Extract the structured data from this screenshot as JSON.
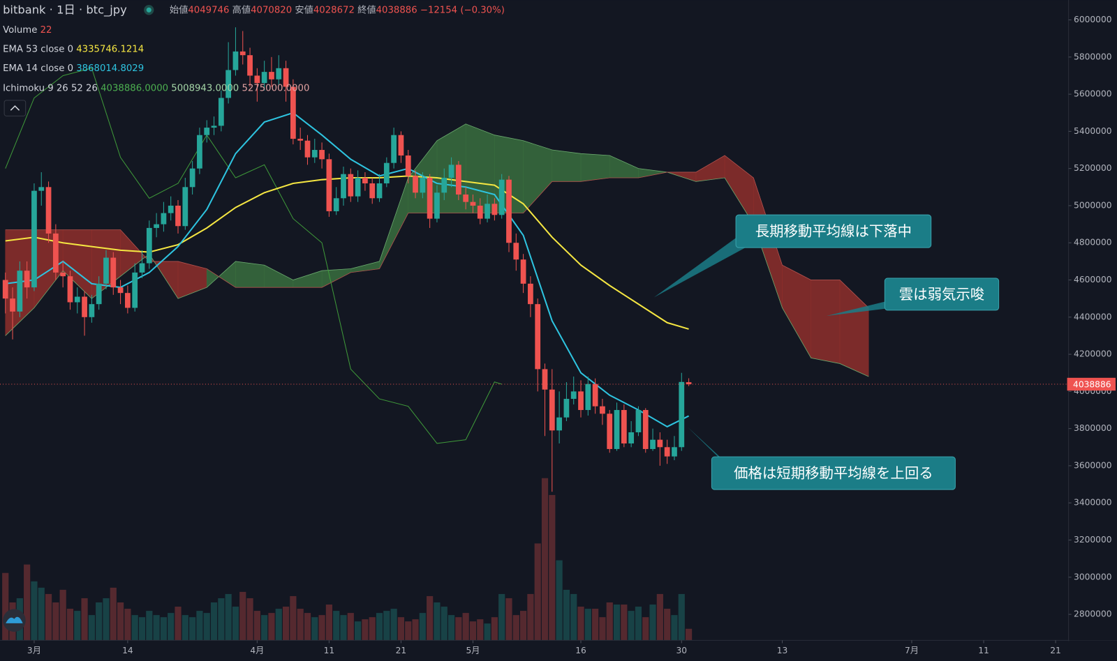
{
  "chart_data": {
    "type": "candlestick",
    "header": {
      "symbol": "bitbank",
      "interval": "1日",
      "pair": "btc_jpy",
      "open_label": "始値",
      "high_label": "高値",
      "low_label": "安値",
      "close_label": "終値",
      "change": "−12154",
      "change_pct": "(−0.30%)"
    },
    "up_color": "#26a69a",
    "down_color": "#ef5350",
    "x": [
      -4,
      -3,
      -2,
      -1,
      0,
      1,
      2,
      3,
      4,
      5,
      6,
      7,
      8,
      9,
      10,
      11,
      12,
      13,
      14,
      15,
      16,
      17,
      18,
      19,
      20,
      21,
      22,
      23,
      24,
      25,
      26,
      27,
      28,
      29,
      30,
      31,
      32,
      33,
      34,
      35,
      36,
      37,
      38,
      39,
      40,
      41,
      42,
      43,
      44,
      45,
      46,
      47,
      48,
      49,
      50,
      51,
      52,
      53,
      54,
      55,
      56,
      57,
      58,
      59,
      60,
      61,
      62,
      63,
      64,
      65,
      66,
      67,
      68,
      69,
      70,
      71,
      72,
      73,
      74,
      75,
      76,
      77,
      78,
      79,
      80,
      81,
      82,
      83,
      84,
      85,
      86,
      87,
      88,
      89,
      90,
      91
    ],
    "open": [
      4600000,
      4500000,
      4430000,
      4650000,
      4560000,
      5080000,
      5100000,
      4850000,
      4640000,
      4620000,
      4480000,
      4510000,
      4400000,
      4470000,
      4580000,
      4720000,
      4560000,
      4530000,
      4450000,
      4640000,
      4690000,
      4880000,
      4900000,
      4960000,
      5000000,
      4890000,
      5100000,
      5200000,
      5380000,
      5420000,
      5430000,
      5580000,
      5730000,
      5830000,
      5810000,
      5700000,
      5660000,
      5720000,
      5680000,
      5740000,
      5640000,
      5360000,
      5350000,
      5260000,
      5300000,
      5250000,
      4970000,
      5040000,
      5170000,
      5050000,
      5150000,
      5120000,
      5040000,
      5120000,
      5230000,
      5380000,
      5270000,
      5160000,
      5070000,
      5150000,
      4930000,
      5070000,
      5150000,
      5220000,
      5060000,
      5020000,
      5000000,
      4930000,
      5010000,
      4950000,
      5140000,
      4800000,
      4710000,
      4580000,
      4470000,
      4120000,
      4010000,
      3790000,
      3860000,
      3960000,
      4000000,
      3900000,
      4040000,
      3920000,
      3880000,
      3690000,
      3900000,
      3720000,
      3780000,
      3900000,
      3690000,
      3740000,
      3700000,
      3650000,
      3700000,
      4049746
    ],
    "high": [
      4640000,
      4560000,
      4700000,
      4700000,
      5120000,
      5180000,
      5130000,
      4900000,
      4700000,
      4650000,
      4560000,
      4540000,
      4520000,
      4620000,
      4760000,
      4750000,
      4600000,
      4570000,
      4690000,
      4760000,
      4920000,
      4960000,
      5020000,
      5050000,
      5030000,
      5150000,
      5240000,
      5420000,
      5460000,
      5480000,
      5620000,
      5880000,
      5960000,
      5940000,
      5850000,
      5740000,
      5780000,
      5800000,
      5810000,
      5780000,
      5680000,
      5420000,
      5380000,
      5360000,
      5340000,
      5280000,
      5100000,
      5210000,
      5200000,
      5190000,
      5180000,
      5150000,
      5170000,
      5260000,
      5420000,
      5400000,
      5300000,
      5190000,
      5180000,
      5170000,
      5110000,
      5200000,
      5260000,
      5240000,
      5100000,
      5060000,
      5040000,
      5060000,
      5040000,
      5170000,
      5160000,
      4850000,
      4740000,
      4620000,
      4500000,
      4150000,
      4120000,
      4000000,
      4050000,
      4080000,
      4060000,
      4080000,
      4070000,
      3960000,
      3900000,
      3940000,
      3930000,
      3840000,
      3920000,
      3910000,
      3800000,
      3780000,
      3740000,
      3760000,
      4100000,
      4070820
    ],
    "low": [
      4420000,
      4280000,
      4400000,
      4500000,
      4540000,
      5000000,
      4800000,
      4600000,
      4560000,
      4440000,
      4420000,
      4300000,
      4370000,
      4440000,
      4550000,
      4520000,
      4470000,
      4420000,
      4430000,
      4610000,
      4660000,
      4830000,
      4860000,
      4920000,
      4850000,
      4870000,
      5060000,
      5170000,
      5340000,
      5380000,
      5400000,
      5550000,
      5700000,
      5760000,
      5640000,
      5560000,
      5620000,
      5640000,
      5650000,
      5560000,
      5330000,
      5300000,
      5220000,
      5230000,
      5200000,
      4940000,
      4950000,
      5000000,
      5020000,
      5020000,
      5080000,
      5010000,
      5020000,
      5100000,
      5200000,
      5230000,
      5120000,
      5040000,
      5040000,
      4880000,
      4910000,
      5030000,
      5100000,
      5030000,
      4980000,
      4960000,
      4900000,
      4910000,
      4920000,
      4930000,
      4750000,
      4650000,
      4530000,
      4400000,
      4000000,
      3760000,
      3460000,
      3720000,
      3840000,
      3930000,
      3860000,
      3870000,
      3880000,
      3820000,
      3670000,
      3680000,
      3700000,
      3700000,
      3760000,
      3670000,
      3680000,
      3600000,
      3610000,
      3630000,
      3680000,
      4028672
    ],
    "close": [
      4500000,
      4430000,
      4650000,
      4560000,
      5080000,
      5100000,
      4850000,
      4640000,
      4620000,
      4480000,
      4510000,
      4400000,
      4470000,
      4580000,
      4720000,
      4560000,
      4530000,
      4450000,
      4640000,
      4690000,
      4880000,
      4900000,
      4960000,
      5000000,
      4890000,
      5100000,
      5200000,
      5380000,
      5420000,
      5430000,
      5580000,
      5730000,
      5830000,
      5810000,
      5700000,
      5660000,
      5720000,
      5680000,
      5740000,
      5640000,
      5360000,
      5350000,
      5260000,
      5300000,
      5250000,
      4970000,
      5040000,
      5170000,
      5050000,
      5150000,
      5120000,
      5040000,
      5120000,
      5230000,
      5380000,
      5270000,
      5160000,
      5070000,
      5150000,
      4930000,
      5070000,
      5150000,
      5220000,
      5060000,
      5020000,
      5000000,
      4930000,
      5010000,
      4950000,
      5140000,
      4800000,
      4710000,
      4580000,
      4470000,
      4120000,
      4010000,
      3790000,
      3860000,
      3960000,
      4000000,
      3900000,
      4040000,
      3920000,
      3880000,
      3690000,
      3900000,
      3720000,
      3780000,
      3900000,
      3690000,
      3740000,
      3700000,
      3650000,
      3700000,
      4051040,
      4038886
    ],
    "volume": {
      "name": "Volume",
      "values": [
        128,
        72,
        80,
        144,
        112,
        100,
        88,
        72,
        96,
        60,
        56,
        80,
        48,
        72,
        80,
        100,
        72,
        60,
        48,
        44,
        56,
        48,
        44,
        52,
        64,
        48,
        44,
        56,
        52,
        72,
        80,
        88,
        64,
        92,
        80,
        56,
        48,
        52,
        60,
        64,
        84,
        60,
        52,
        44,
        48,
        68,
        56,
        48,
        52,
        36,
        40,
        44,
        52,
        56,
        60,
        44,
        36,
        40,
        52,
        84,
        72,
        64,
        48,
        44,
        52,
        36,
        40,
        32,
        44,
        88,
        80,
        48,
        56,
        88,
        184,
        308,
        276,
        152,
        96,
        88,
        64,
        60,
        60,
        44,
        72,
        68,
        68,
        56,
        64,
        44,
        68,
        88,
        60,
        48,
        88,
        22
      ]
    },
    "series": [
      {
        "name": "EMA 53 close 0",
        "color": "#f5e642",
        "last_label": "4335746.1214",
        "x": [
          -4,
          0,
          4,
          8,
          12,
          16,
          20,
          24,
          28,
          32,
          36,
          40,
          44,
          48,
          52,
          56,
          60,
          64,
          68,
          72,
          76,
          80,
          84,
          88,
          91
        ],
        "values": [
          4810000,
          4830000,
          4800000,
          4780000,
          4760000,
          4750000,
          4790000,
          4880000,
          4990000,
          5070000,
          5120000,
          5140000,
          5150000,
          5150000,
          5160000,
          5150000,
          5130000,
          5110000,
          5010000,
          4830000,
          4680000,
          4570000,
          4470000,
          4370000,
          4335746.1214
        ]
      },
      {
        "name": "EMA 14 close 0",
        "color": "#2ec4e0",
        "last_label": "3868014.8029",
        "x": [
          -4,
          0,
          4,
          8,
          12,
          16,
          20,
          24,
          28,
          32,
          36,
          40,
          44,
          48,
          52,
          56,
          60,
          64,
          68,
          72,
          76,
          80,
          84,
          88,
          91
        ],
        "values": [
          4580000,
          4600000,
          4700000,
          4580000,
          4560000,
          4640000,
          4780000,
          4980000,
          5280000,
          5450000,
          5500000,
          5380000,
          5250000,
          5160000,
          5200000,
          5120000,
          5100000,
          5060000,
          4840000,
          4380000,
          4100000,
          3980000,
          3900000,
          3810000,
          3868014.8029
        ]
      }
    ],
    "ichimoku": {
      "name": "Ichimoku 9 26 52 26",
      "labels": [
        "4038886.0000",
        "5008943.0000",
        "5275000.0000"
      ],
      "lagging": {
        "color": "#3f9a3a",
        "x": [
          -4,
          0,
          4,
          8,
          12,
          16,
          20,
          24,
          28,
          32,
          36,
          40,
          44,
          48,
          52,
          56,
          60,
          64,
          65
        ],
        "values": [
          5200000,
          5580000,
          5700000,
          5740000,
          5260000,
          5040000,
          5120000,
          5380000,
          5150000,
          5220000,
          4930000,
          4800000,
          4120000,
          3960000,
          3920000,
          3720000,
          3740000,
          4051040,
          4038886
        ]
      },
      "cloud_x": [
        -4,
        0,
        4,
        8,
        12,
        16,
        20,
        24,
        28,
        32,
        36,
        40,
        44,
        48,
        52,
        56,
        60,
        64,
        68,
        72,
        76,
        80,
        84,
        88,
        92,
        96,
        100,
        104,
        108,
        112,
        116
      ],
      "span_a": [
        4300000,
        4450000,
        4650000,
        4500000,
        4620000,
        4740000,
        4500000,
        4560000,
        4700000,
        4680000,
        4600000,
        4650000,
        4660000,
        4700000,
        5150000,
        5350000,
        5440000,
        5380000,
        5350000,
        5300000,
        5280000,
        5270000,
        5200000,
        5180000,
        5130000,
        5150000,
        4900000,
        4450000,
        4180000,
        4150000,
        4080000
      ],
      "span_b": [
        4870000,
        4870000,
        4870000,
        4870000,
        4870000,
        4700000,
        4700000,
        4660000,
        4560000,
        4560000,
        4560000,
        4560000,
        4640000,
        4660000,
        4960000,
        4960000,
        4960000,
        4960000,
        4960000,
        5130000,
        5130000,
        5150000,
        5150000,
        5180000,
        5180000,
        5270000,
        5150000,
        4680000,
        4600000,
        4600000,
        4450000
      ],
      "bull_color": "#3a6e3e",
      "bear_color": "#8f2f2c"
    },
    "xlim": [
      -4.75,
      143.8
    ],
    "xticks": [
      {
        "value": 0,
        "label": "3月"
      },
      {
        "value": 13,
        "label": "14"
      },
      {
        "value": 31,
        "label": "4月"
      },
      {
        "value": 41,
        "label": "11"
      },
      {
        "value": 51,
        "label": "21"
      },
      {
        "value": 61,
        "label": "5月"
      },
      {
        "value": 76,
        "label": "16"
      },
      {
        "value": 90,
        "label": "30"
      },
      {
        "value": 104,
        "label": "13"
      },
      {
        "value": 122,
        "label": "7月"
      },
      {
        "value": 132,
        "label": "11"
      },
      {
        "value": 142,
        "label": "21"
      }
    ],
    "ylim": [
      2660000,
      6107000
    ],
    "yticks": [
      2800000,
      3000000,
      3200000,
      3400000,
      3600000,
      3800000,
      4000000,
      4200000,
      4400000,
      4600000,
      4800000,
      5000000,
      5200000,
      5400000,
      5600000,
      5800000,
      6000000
    ],
    "grid": false,
    "annotations": [
      {
        "text": "長期移動平均線は下落中"
      },
      {
        "text": "雲は弱気示唆"
      },
      {
        "text": "価格は短期移動平均線を上回る"
      }
    ]
  }
}
